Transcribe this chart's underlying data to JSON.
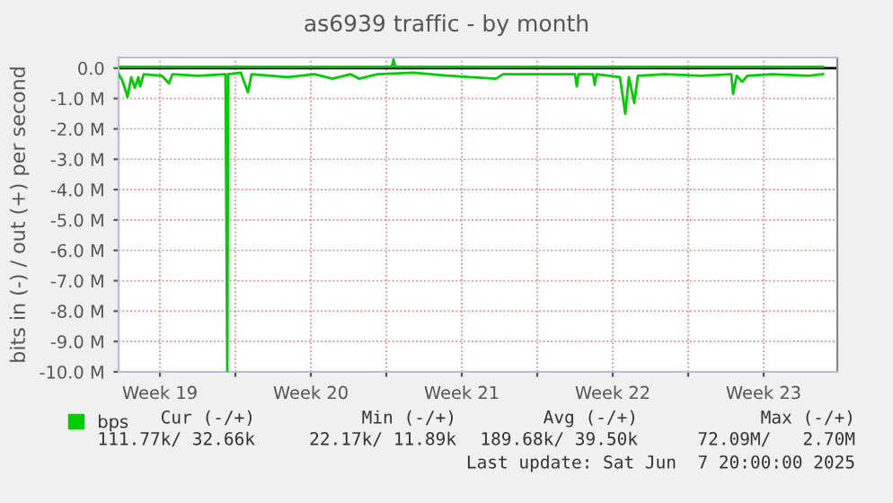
{
  "chart_data": {
    "type": "line",
    "title": "as6939 traffic - by month",
    "ylabel": "bits in (-) / out (+) per second",
    "series": [
      {
        "name": "bps",
        "color": "#00cc00",
        "x": [
          "2025-05-06T14:00",
          "2025-05-06T18:00",
          "2025-05-07T00:00",
          "2025-05-07T04:00",
          "2025-05-07T08:00",
          "2025-05-07T12:00",
          "2025-05-07T14:00",
          "2025-05-07T18:00",
          "2025-05-08T14:00",
          "2025-05-08T22:00",
          "2025-05-09T02:00",
          "2025-05-10T06:00",
          "2025-05-11T13:00",
          "2025-05-11T15:00",
          "2025-05-11T16:00",
          "2025-05-12T06:00",
          "2025-05-12T14:00",
          "2025-05-12T18:00",
          "2025-05-14T10:00",
          "2025-05-15T16:00",
          "2025-05-16T12:00",
          "2025-05-17T08:00",
          "2025-05-17T18:00",
          "2025-05-18T14:00",
          "2025-05-20T06:00",
          "2025-05-21T22:00",
          "2025-05-24T02:00",
          "2025-05-24T10:00",
          "2025-05-26T02:00",
          "2025-05-27T18:00",
          "2025-05-27T20:00",
          "2025-05-27T22:00",
          "2025-05-28T14:00",
          "2025-05-28T16:00",
          "2025-05-28T18:00",
          "2025-05-29T20:00",
          "2025-05-30T02:00",
          "2025-05-30T06:00",
          "2025-05-30T12:00",
          "2025-05-30T16:00",
          "2025-05-31T22:00",
          "2025-06-02T14:00",
          "2025-06-04T00:00",
          "2025-06-04T02:00",
          "2025-06-04T06:00",
          "2025-06-04T12:00",
          "2025-06-04T18:00",
          "2025-06-05T22:00",
          "2025-06-07T14:00",
          "2025-06-08T06:00"
        ],
        "values": [
          -0.2,
          -0.4,
          -0.95,
          -0.3,
          -0.65,
          -0.3,
          -0.6,
          -0.2,
          -0.25,
          -0.5,
          -0.2,
          -0.25,
          -0.2,
          -10,
          -0.2,
          -0.15,
          -0.8,
          -0.2,
          -0.3,
          -0.2,
          -0.35,
          -0.2,
          -0.35,
          -0.2,
          -0.15,
          -0.25,
          -0.35,
          -0.2,
          -0.2,
          -0.2,
          -0.6,
          -0.2,
          -0.2,
          -0.55,
          -0.2,
          -0.3,
          -1.5,
          -0.3,
          -1.15,
          -0.25,
          -0.2,
          -0.25,
          -0.2,
          -0.85,
          -0.25,
          -0.45,
          -0.25,
          -0.2,
          -0.25,
          -0.2
        ]
      },
      {
        "color": "#00cc00",
        "x": [
          "2025-05-06T14:00",
          "2025-05-19T06:00",
          "2025-05-19T08:00",
          "2025-05-19T10:00",
          "2025-06-08T06:00"
        ],
        "values": [
          0.04,
          0.04,
          0.28,
          0.04,
          0.04
        ]
      }
    ],
    "xlim": [
      "2025-05-06T14:00",
      "2025-06-08T22:00"
    ],
    "xticks": [
      {
        "value": "2025-05-08T12:00",
        "label": "Week 19"
      },
      {
        "value": "2025-05-12T00:00",
        "label": null
      },
      {
        "value": "2025-05-15T12:00",
        "label": "Week 20"
      },
      {
        "value": "2025-05-19T00:00",
        "label": null
      },
      {
        "value": "2025-05-22T12:00",
        "label": "Week 21"
      },
      {
        "value": "2025-05-26T00:00",
        "label": null
      },
      {
        "value": "2025-05-29T12:00",
        "label": "Week 22"
      },
      {
        "value": "2025-06-02T00:00",
        "label": null
      },
      {
        "value": "2025-06-05T12:00",
        "label": "Week 23"
      }
    ],
    "ylim": [
      -10,
      0.35
    ],
    "yticks": [
      {
        "value": 0,
        "label": "0.0"
      },
      {
        "value": -1,
        "label": "-1.0 M"
      },
      {
        "value": -2,
        "label": "-2.0 M"
      },
      {
        "value": -3,
        "label": "-3.0 M"
      },
      {
        "value": -4,
        "label": "-4.0 M"
      },
      {
        "value": -5,
        "label": "-5.0 M"
      },
      {
        "value": -6,
        "label": "-6.0 M"
      },
      {
        "value": -7,
        "label": "-7.0 M"
      },
      {
        "value": -8,
        "label": "-8.0 M"
      },
      {
        "value": -9,
        "label": "-9.0 M"
      },
      {
        "value": -10,
        "label": "-10.0 M"
      }
    ],
    "ref_lines": [
      {
        "axis": "y",
        "value": 0,
        "color": "#000000"
      }
    ],
    "grid": true,
    "legend": "bottom left",
    "marker": "none",
    "line_style": "solid",
    "annotations": [
      "Cur (-/+)",
      "Min (-/+)",
      "Avg (-/+)",
      "Max (-/+)",
      "111.77k/ 32.66k",
      "22.17k/ 11.89k",
      "189.68k/ 39.50k",
      "72.09M/   2.70M",
      "Last update: Sat Jun  7 20:00:00 2025"
    ]
  }
}
